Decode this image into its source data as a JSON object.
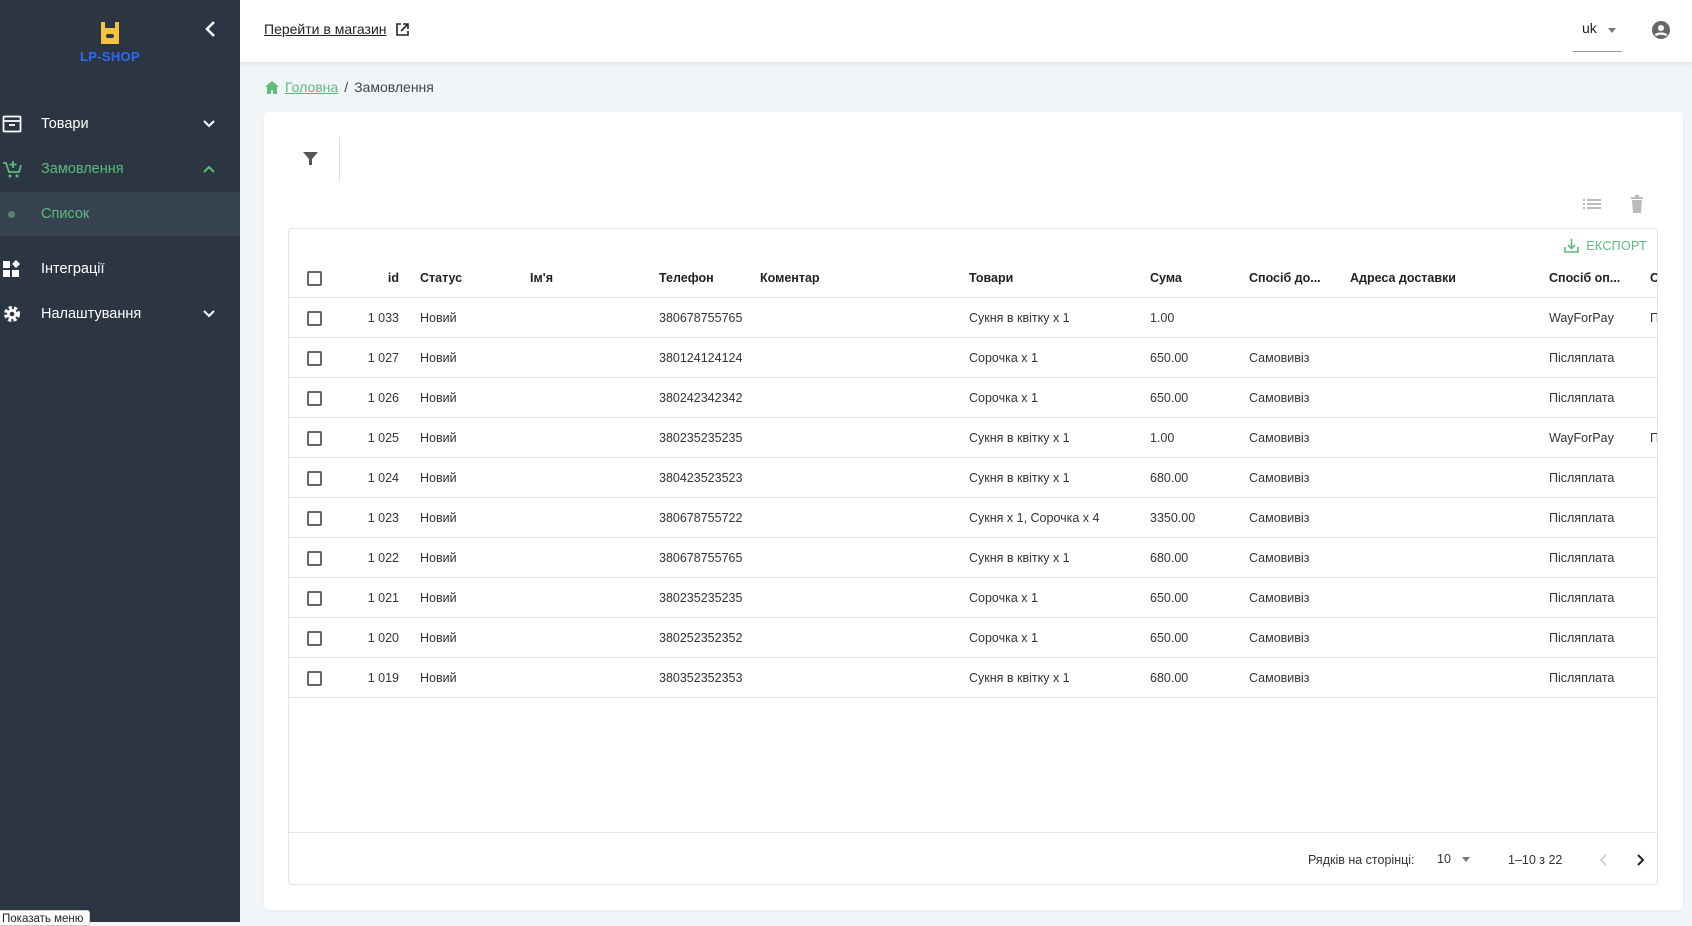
{
  "sidebar": {
    "logo_text": "LP-SHOP",
    "items": [
      {
        "label": "Товари",
        "icon": "archive-icon"
      },
      {
        "label": "Замовлення",
        "icon": "cart-plus-icon"
      },
      {
        "label": "Список"
      },
      {
        "label": "Інтеграції",
        "icon": "widgets-icon"
      },
      {
        "label": "Налаштування",
        "icon": "gear-icon"
      }
    ],
    "tooltip": "Показать меню"
  },
  "topbar": {
    "shop_link": "Перейти в магазин",
    "language": "uk"
  },
  "breadcrumb": {
    "home": "Головна",
    "current": "Замовлення"
  },
  "table": {
    "export_label": "ЕКСПОРТ",
    "columns": [
      "id",
      "Статус",
      "Ім'я",
      "Телефон",
      "Коментар",
      "Товари",
      "Сума",
      "Спосіб до...",
      "Адреса доставки",
      "Спосіб оп...",
      "С"
    ],
    "rows": [
      {
        "id": "1 033",
        "status": "Новий",
        "name": "",
        "phone": "380678755765",
        "comment": "",
        "goods": "Сукня в квітку x 1",
        "sum": "1.00",
        "delivery": "",
        "address": "",
        "payment": "WayForPay",
        "extra": "П"
      },
      {
        "id": "1 027",
        "status": "Новий",
        "name": "",
        "phone": "380124124124",
        "comment": "",
        "goods": "Сорочка x 1",
        "sum": "650.00",
        "delivery": "Самовивіз",
        "address": "",
        "payment": "Післяплата",
        "extra": ""
      },
      {
        "id": "1 026",
        "status": "Новий",
        "name": "",
        "phone": "380242342342",
        "comment": "",
        "goods": "Сорочка x 1",
        "sum": "650.00",
        "delivery": "Самовивіз",
        "address": "",
        "payment": "Післяплата",
        "extra": ""
      },
      {
        "id": "1 025",
        "status": "Новий",
        "name": "",
        "phone": "380235235235",
        "comment": "",
        "goods": "Сукня в квітку x 1",
        "sum": "1.00",
        "delivery": "Самовивіз",
        "address": "",
        "payment": "WayForPay",
        "extra": "П"
      },
      {
        "id": "1 024",
        "status": "Новий",
        "name": "",
        "phone": "380423523523",
        "comment": "",
        "goods": "Сукня в квітку x 1",
        "sum": "680.00",
        "delivery": "Самовивіз",
        "address": "",
        "payment": "Післяплата",
        "extra": ""
      },
      {
        "id": "1 023",
        "status": "Новий",
        "name": "",
        "phone": "380678755722",
        "comment": "",
        "goods": "Сукня x 1, Сорочка x 4",
        "sum": "3350.00",
        "delivery": "Самовивіз",
        "address": "",
        "payment": "Післяплата",
        "extra": ""
      },
      {
        "id": "1 022",
        "status": "Новий",
        "name": "",
        "phone": "380678755765",
        "comment": "",
        "goods": "Сукня в квітку x 1",
        "sum": "680.00",
        "delivery": "Самовивіз",
        "address": "",
        "payment": "Післяплата",
        "extra": ""
      },
      {
        "id": "1 021",
        "status": "Новий",
        "name": "",
        "phone": "380235235235",
        "comment": "",
        "goods": "Сорочка x 1",
        "sum": "650.00",
        "delivery": "Самовивіз",
        "address": "",
        "payment": "Післяплата",
        "extra": ""
      },
      {
        "id": "1 020",
        "status": "Новий",
        "name": "",
        "phone": "380252352352",
        "comment": "",
        "goods": "Сорочка x 1",
        "sum": "650.00",
        "delivery": "Самовивіз",
        "address": "",
        "payment": "Післяплата",
        "extra": ""
      },
      {
        "id": "1 019",
        "status": "Новий",
        "name": "",
        "phone": "380352352353",
        "comment": "",
        "goods": "Сукня в квітку x 1",
        "sum": "680.00",
        "delivery": "Самовивіз",
        "address": "",
        "payment": "Післяплата",
        "extra": ""
      }
    ],
    "pagination": {
      "rows_per_page_label": "Рядків на сторінці:",
      "rows_per_page": "10",
      "range": "1–10 з 22"
    }
  },
  "colors": {
    "sidebar": "#2c3643",
    "accent": "#5dbb7d",
    "logo_blue": "#2f6bf0",
    "logo_yellow": "#f5c242"
  }
}
